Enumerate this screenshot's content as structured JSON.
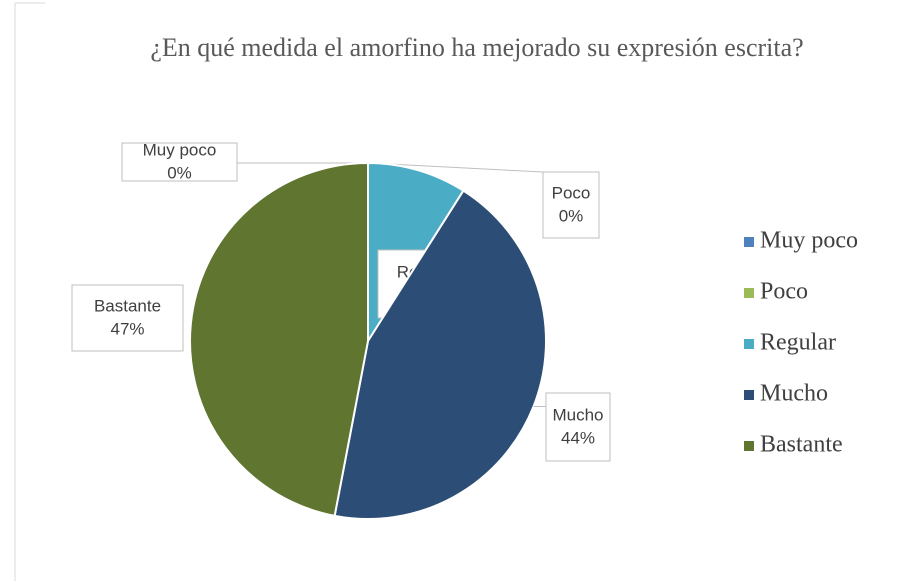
{
  "chart_data": {
    "type": "pie",
    "title": "¿En qué medida el amorfino ha mejorado su expresión escrita?",
    "categories": [
      "Muy poco",
      "Poco",
      "Regular",
      "Mucho",
      "Bastante"
    ],
    "values": [
      0,
      0,
      9,
      44,
      47
    ],
    "value_labels": [
      "0%",
      "0%",
      "9%",
      "44%",
      "47%"
    ],
    "colors": [
      "#4f81bd",
      "#9bbb59",
      "#4bacc6",
      "#2c4d75",
      "#5f7530"
    ],
    "legend": "right"
  }
}
